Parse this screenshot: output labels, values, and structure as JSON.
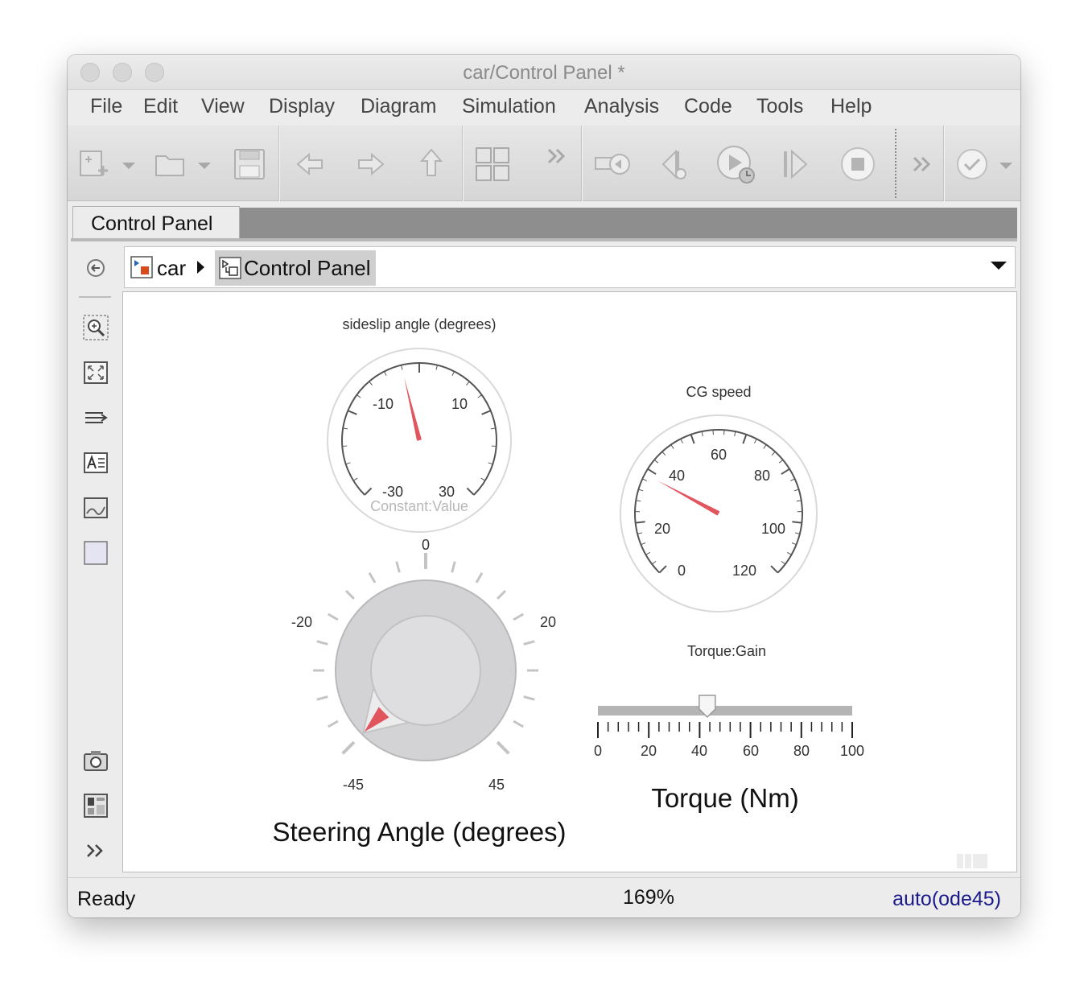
{
  "window": {
    "title": "car/Control Panel *"
  },
  "menu": {
    "items": [
      "File",
      "Edit",
      "View",
      "Display",
      "Diagram",
      "Simulation",
      "Analysis",
      "Code",
      "Tools",
      "Help"
    ]
  },
  "toolbar": {
    "icons": [
      "new-model-icon",
      "dropdown-arrow-icon",
      "open-folder-icon",
      "dropdown-arrow-icon",
      "save-icon",
      "back-arrow-icon",
      "forward-arrow-icon",
      "up-arrow-icon",
      "library-browser-icon",
      "more-chevron-icon",
      "step-back-icon",
      "step-icon",
      "run-icon",
      "step-forward-icon",
      "stop-icon",
      "more-chevron-icon",
      "check-icon"
    ]
  },
  "tabs": {
    "active_label": "Control Panel"
  },
  "breadcrumb": {
    "root": "car",
    "current": "Control Panel"
  },
  "canvas": {
    "sideslip": {
      "title": "sideslip angle (degrees)",
      "ticks": [
        "-10",
        "10",
        "-30",
        "30"
      ],
      "footer": "Constant:Value",
      "value": -4
    },
    "cgspeed": {
      "title": "CG speed",
      "ticks": [
        "0",
        "20",
        "40",
        "60",
        "80",
        "100",
        "120"
      ],
      "value": 38
    },
    "knob": {
      "ticks": [
        "0",
        "20",
        "-20",
        "-45",
        "45"
      ],
      "label": "Steering Angle (degrees)",
      "value": -45
    },
    "slider": {
      "title": "Torque:Gain",
      "ticks": [
        "0",
        "20",
        "40",
        "60",
        "80",
        "100"
      ],
      "label": "Torque (Nm)",
      "value": 43
    }
  },
  "status": {
    "state": "Ready",
    "zoom": "169%",
    "solver": "auto(ode45)"
  },
  "colors": {
    "needle": "#e0555e",
    "solver_text": "#1a1a8c"
  }
}
